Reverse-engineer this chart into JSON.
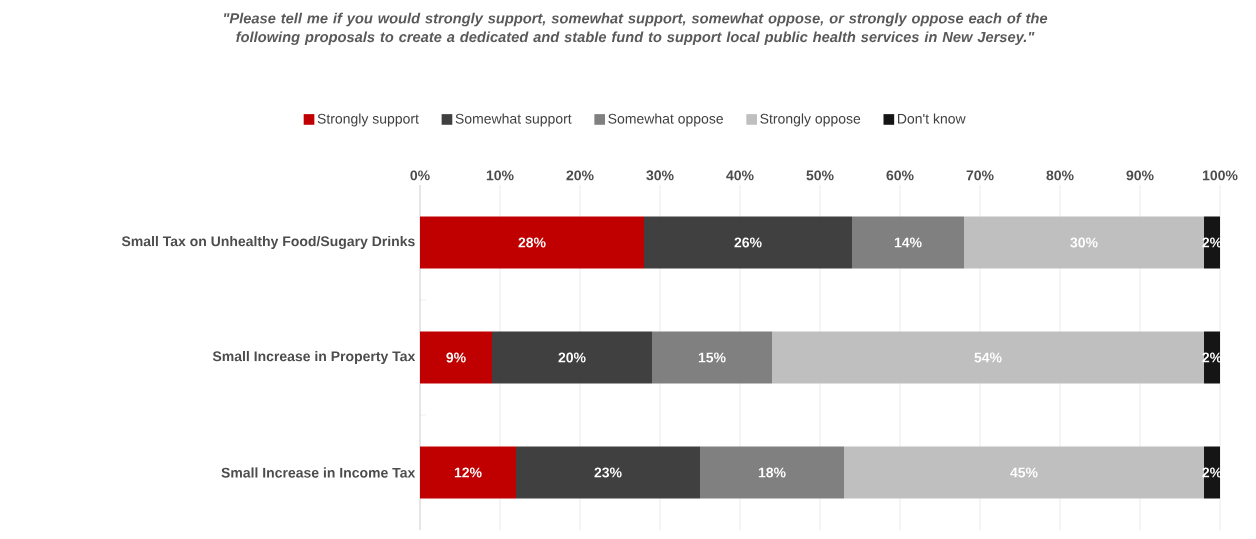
{
  "chart_data": {
    "type": "bar",
    "orientation": "horizontal",
    "stacked": true,
    "title": "\"Please tell me if you would strongly support, somewhat support, somewhat oppose, or strongly oppose each of the following proposals to create a dedicated and stable fund to support local public health services in New Jersey.\"",
    "categories": [
      "Small Tax on Unhealthy Food/Sugary Drinks",
      "Small Increase in Property Tax",
      "Small Increase in Income Tax"
    ],
    "series": [
      {
        "name": "Strongly support",
        "color": "#c00000",
        "values": [
          28,
          9,
          12
        ],
        "value_labels": [
          "28%",
          "9%",
          "12%"
        ]
      },
      {
        "name": "Somewhat support",
        "color": "#404040",
        "values": [
          26,
          20,
          23
        ],
        "value_labels": [
          "26%",
          "20%",
          "23%"
        ]
      },
      {
        "name": "Somewhat oppose",
        "color": "#808080",
        "values": [
          14,
          15,
          18
        ],
        "value_labels": [
          "14%",
          "15%",
          "18%"
        ]
      },
      {
        "name": "Strongly oppose",
        "color": "#bfbfbf",
        "values": [
          30,
          54,
          45
        ],
        "value_labels": [
          "30%",
          "54%",
          "45%"
        ]
      },
      {
        "name": "Don't know",
        "color": "#151515",
        "values": [
          2,
          2,
          2
        ],
        "value_labels": [
          "2%",
          "2%",
          "2%"
        ]
      }
    ],
    "xlim": [
      0,
      100
    ],
    "xticks": [
      {
        "value": 0,
        "label": "0%"
      },
      {
        "value": 10,
        "label": "10%"
      },
      {
        "value": 20,
        "label": "20%"
      },
      {
        "value": 30,
        "label": "30%"
      },
      {
        "value": 40,
        "label": "40%"
      },
      {
        "value": 50,
        "label": "50%"
      },
      {
        "value": 60,
        "label": "60%"
      },
      {
        "value": 70,
        "label": "70%"
      },
      {
        "value": 80,
        "label": "80%"
      },
      {
        "value": 90,
        "label": "90%"
      },
      {
        "value": 100,
        "label": "100%"
      }
    ],
    "grid": "x",
    "legend": "top"
  }
}
